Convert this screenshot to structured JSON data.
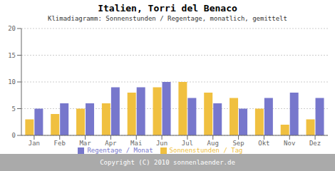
{
  "chart_data": {
    "type": "bar",
    "title": "Italien, Torri del Benaco",
    "subtitle": "Klimadiagramm: Sonnenstunden / Regentage, monatlich, gemittelt",
    "categories": [
      "Jan",
      "Feb",
      "Mar",
      "Apr",
      "Mai",
      "Jun",
      "Jul",
      "Aug",
      "Sep",
      "Okt",
      "Nov",
      "Dez"
    ],
    "series": [
      {
        "name": "Sonnenstunden / Tag",
        "color": "#f0c040",
        "values": [
          3,
          4,
          5,
          6,
          8,
          9,
          10,
          8,
          7,
          5,
          2,
          3
        ]
      },
      {
        "name": "Regentage / Monat",
        "color": "#7777cc",
        "values": [
          5,
          6,
          6,
          9,
          9,
          10,
          7,
          6,
          5,
          7,
          8,
          7
        ]
      }
    ],
    "ylim": [
      0,
      20
    ],
    "yticks": [
      0,
      5,
      10,
      15,
      20
    ],
    "grid": true,
    "legend": "bottom",
    "annotations": [
      "Copyright (C) 2010 sonnenlaender.de"
    ]
  }
}
